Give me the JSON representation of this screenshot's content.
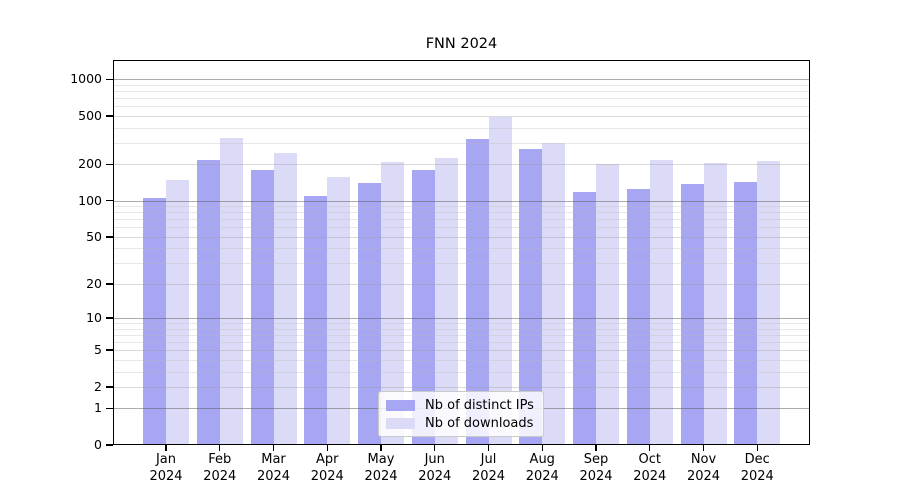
{
  "title": "FNN 2024",
  "chart_data": {
    "type": "bar",
    "title": "FNN 2024",
    "x_ticks": [
      {
        "line1": "Jan",
        "line2": "2024"
      },
      {
        "line1": "Feb",
        "line2": "2024"
      },
      {
        "line1": "Mar",
        "line2": "2024"
      },
      {
        "line1": "Apr",
        "line2": "2024"
      },
      {
        "line1": "May",
        "line2": "2024"
      },
      {
        "line1": "Jun",
        "line2": "2024"
      },
      {
        "line1": "Jul",
        "line2": "2024"
      },
      {
        "line1": "Aug",
        "line2": "2024"
      },
      {
        "line1": "Sep",
        "line2": "2024"
      },
      {
        "line1": "Oct",
        "line2": "2024"
      },
      {
        "line1": "Nov",
        "line2": "2024"
      },
      {
        "line1": "Dec",
        "line2": "2024"
      }
    ],
    "series": [
      {
        "key": "distinct-ips",
        "name": "Nb of distinct IPs",
        "color": "#a6a6f2",
        "values": [
          105,
          215,
          180,
          110,
          140,
          181,
          322,
          266,
          118,
          126,
          138,
          144
        ]
      },
      {
        "key": "downloads",
        "name": "Nb of downloads",
        "color": "#dbdbf8",
        "values": [
          148,
          330,
          248,
          158,
          208,
          226,
          490,
          301,
          200,
          218,
          206,
          213
        ]
      }
    ],
    "yscale": "log1p",
    "yticks": [
      0,
      1,
      2,
      5,
      10,
      20,
      50,
      100,
      200,
      500,
      1000
    ],
    "y_minor_gridlines": [
      3,
      4,
      6,
      7,
      8,
      9,
      30,
      40,
      60,
      70,
      80,
      90,
      300,
      400,
      600,
      700,
      800,
      900
    ],
    "ylim": [
      0,
      1440
    ],
    "grid": true,
    "legend_position": "inside-bottom-center"
  },
  "colors": {
    "bar_distinct_ips": "#a6a6f2",
    "bar_downloads": "#dbdbf8",
    "grid_decade": "#acacac",
    "grid_labeled": "#d9d9d9",
    "grid_minor": "#e8e8e8",
    "axis": "#000000",
    "background": "#ffffff"
  }
}
